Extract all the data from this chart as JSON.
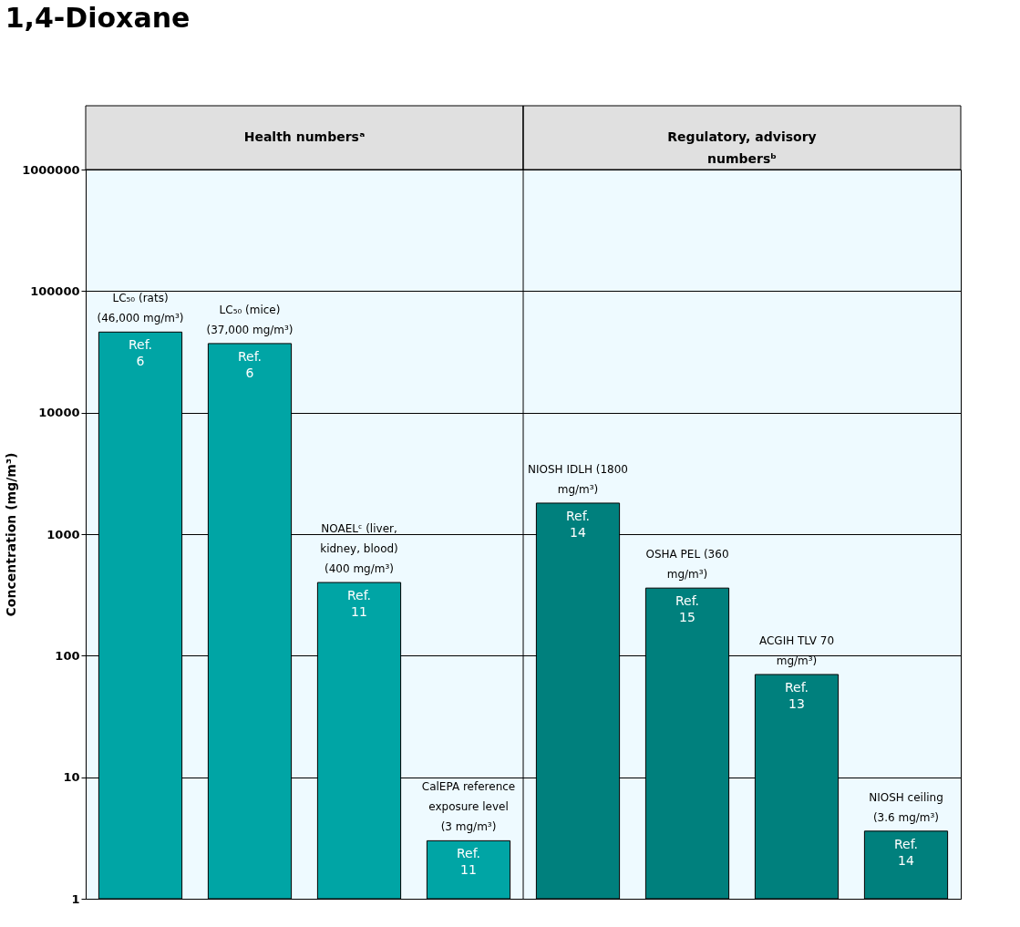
{
  "chart_data": {
    "type": "bar",
    "title": "1,4-Dioxane",
    "ylabel": "Concentration (mg/m³)",
    "categories": [
      null,
      null,
      null,
      null,
      null,
      null,
      null,
      null
    ],
    "values": [
      46000,
      37000,
      400,
      3,
      1800,
      360,
      70,
      3.6
    ],
    "colors": [
      "#00a5a5",
      "#00a5a5",
      "#00a5a5",
      "#00a5a5",
      "#00807d",
      "#00807d",
      "#00807d",
      "#00807d"
    ],
    "annotations": [
      {
        "text": "LC₅₀ (rats) (46,000 mg/m³)",
        "y": 46000
      },
      {
        "text": "LC₅₀ (mice) (37,000 mg/m³)",
        "y": 37000
      },
      {
        "text": "NOAELᶜ (liver, kidney, blood) (400 mg/m³)",
        "y": 400
      },
      {
        "text": "CalEPA reference exposure level (3 mg/m³)",
        "y": 3
      },
      {
        "text": "NIOSH IDLH (1800 mg/m³)",
        "y": 1800
      },
      {
        "text": "OSHA PEL (360 mg/m³)",
        "y": 360
      },
      {
        "text": "ACGIH TLV 70 mg/m³)",
        "y": 70
      },
      {
        "text": "NIOSH ceiling (3.6 mg/m³)",
        "y": 3.6
      },
      {
        "text": "Ref. 6",
        "y": 46000
      },
      {
        "text": "Ref. 6",
        "y": 37000
      },
      {
        "text": "Ref. 11",
        "y": 400
      },
      {
        "text": "Ref. 11",
        "y": 3
      },
      {
        "text": "Ref. 14",
        "y": 1800
      },
      {
        "text": "Ref. 15",
        "y": 360
      },
      {
        "text": "Ref. 13",
        "y": 70
      },
      {
        "text": "Ref. 14",
        "y": 3.6
      },
      "Health numbersᵃ",
      "Regulatory, advisory numbersᵇ"
    ],
    "ylim": [
      1,
      1000000
    ],
    "yticks": [
      1,
      10,
      100,
      1000,
      10000,
      100000,
      1000000
    ],
    "log": true,
    "grid": "y"
  }
}
